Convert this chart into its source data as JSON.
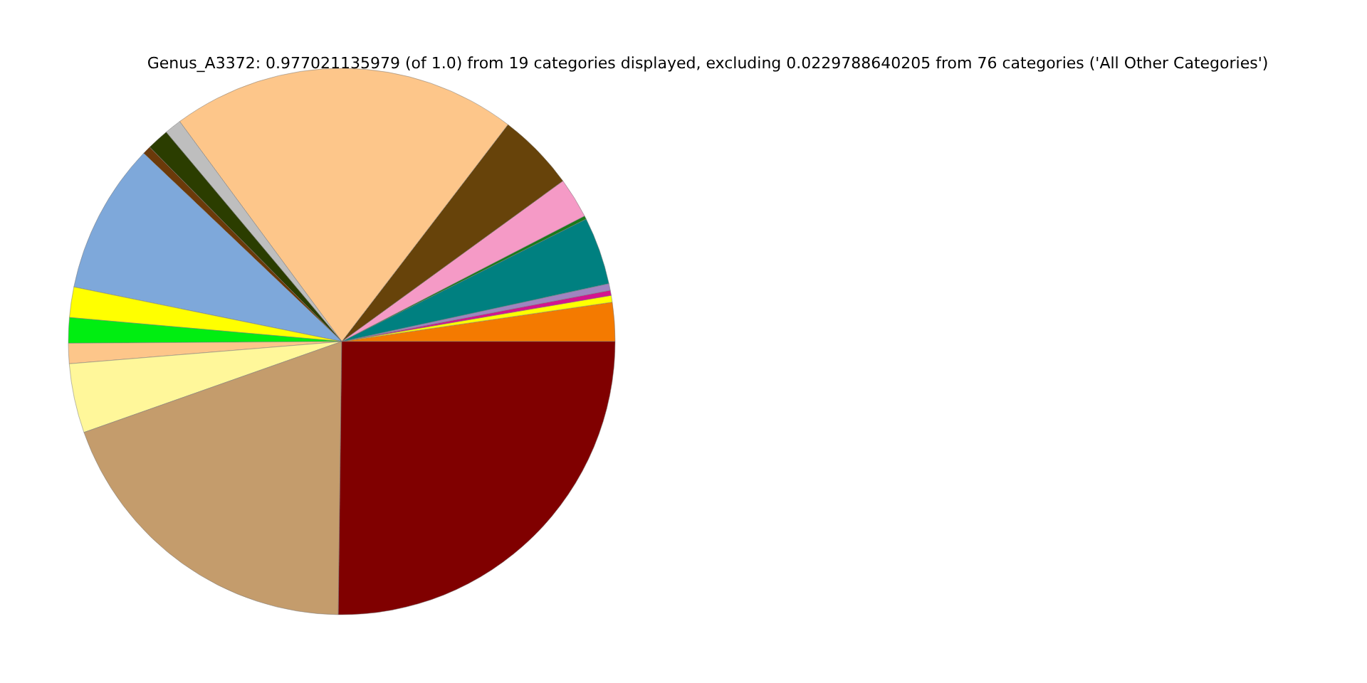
{
  "chart_data": {
    "type": "pie",
    "title": "Genus_A3372: 0.977021135979 (of 1.0) from 19 categories displayed, excluding 0.0229788640205 from 76 categories ('All Other Categories')",
    "categories": [
      null,
      null,
      null,
      null,
      null,
      null,
      null,
      null,
      null,
      null,
      null,
      null,
      null,
      null,
      null,
      null,
      null,
      null,
      null
    ],
    "values": [
      2.3,
      0.4,
      0.3,
      0.4,
      4.0,
      0.2,
      2.4,
      4.6,
      20.5,
      1.0,
      1.3,
      0.5,
      8.9,
      1.8,
      1.5,
      1.2,
      4.1,
      19.4,
      25.2
    ],
    "colors": [
      "#f47a00",
      "#ffff00",
      "#d4148f",
      "#a084c0",
      "#008080",
      "#1a7a1a",
      "#f59ac6",
      "#67430a",
      "#fdc68a",
      "#bebebe",
      "#2b3d00",
      "#6b3a0a",
      "#7ea8da",
      "#ffff00",
      "#00ee11",
      "#fdc68a",
      "#fff79a",
      "#c49c6c",
      "#800000"
    ]
  }
}
